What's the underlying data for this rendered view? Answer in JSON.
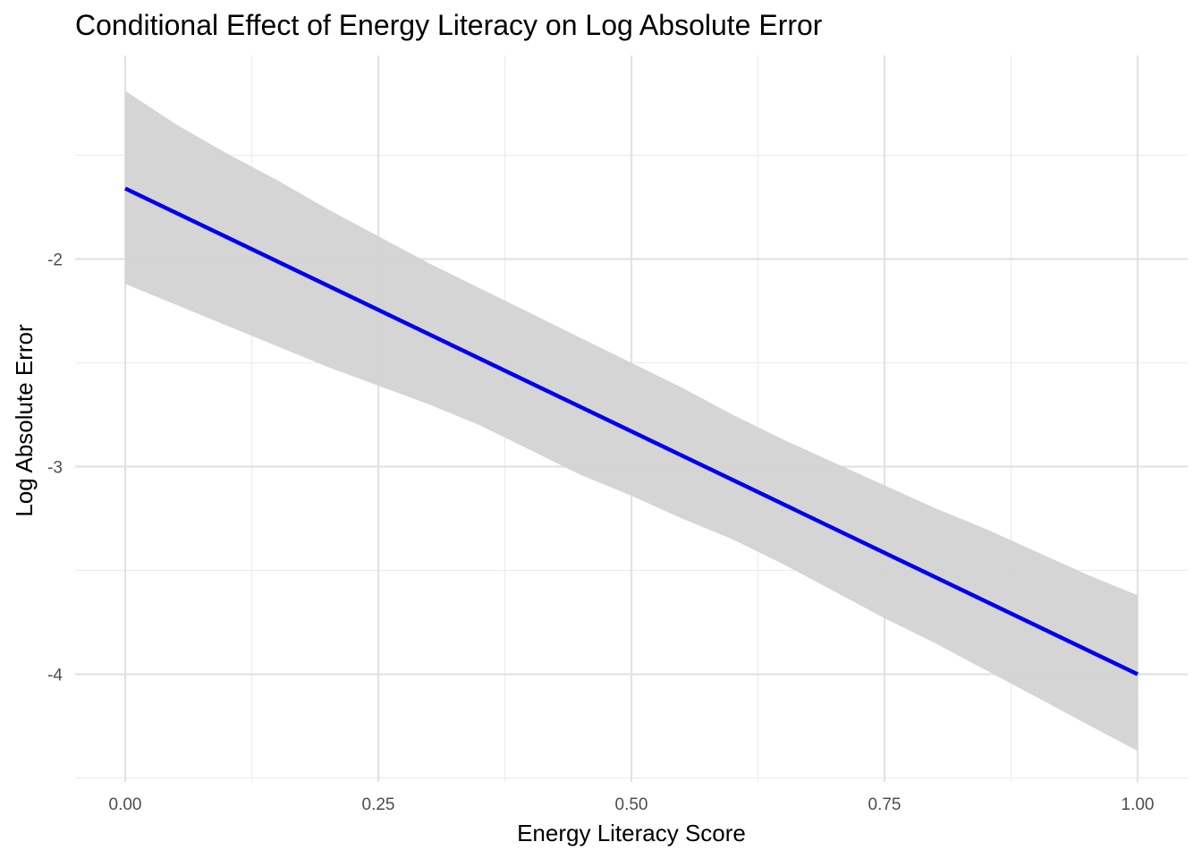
{
  "chart_data": {
    "type": "line",
    "title": "Conditional Effect of Energy Literacy on Log Absolute Error",
    "xlabel": "Energy Literacy Score",
    "ylabel": "Log Absolute Error",
    "xlim": [
      -0.1,
      1.0
    ],
    "ylim": [
      -4.5,
      -1.2
    ],
    "x_ticks": [
      0.0,
      0.25,
      0.5,
      0.75,
      1.0
    ],
    "x_tick_labels": [
      "0.00",
      "0.25",
      "0.50",
      "0.75",
      "1.00"
    ],
    "y_ticks": [
      -2,
      -3,
      -4
    ],
    "y_tick_labels": [
      "-2",
      "-3",
      "-4"
    ],
    "grid": true,
    "legend": "none",
    "series": [
      {
        "x": [
          0.0,
          1.0
        ],
        "y": [
          -1.66,
          -4.0
        ],
        "color": "#0000ee"
      }
    ],
    "confidence_band": {
      "color": "#d3d3d3",
      "x": [
        0.0,
        0.05,
        0.1,
        0.15,
        0.2,
        0.25,
        0.3,
        0.35,
        0.4,
        0.45,
        0.5,
        0.55,
        0.6,
        0.65,
        0.7,
        0.75,
        0.8,
        0.85,
        0.9,
        0.95,
        1.0
      ],
      "upper": [
        -1.19,
        -1.35,
        -1.49,
        -1.62,
        -1.76,
        -1.89,
        -2.02,
        -2.14,
        -2.26,
        -2.38,
        -2.5,
        -2.62,
        -2.75,
        -2.87,
        -2.98,
        -3.09,
        -3.2,
        -3.3,
        -3.41,
        -3.52,
        -3.62
      ],
      "lower": [
        -2.12,
        -2.22,
        -2.32,
        -2.42,
        -2.52,
        -2.61,
        -2.7,
        -2.8,
        -2.92,
        -3.04,
        -3.14,
        -3.25,
        -3.35,
        -3.47,
        -3.6,
        -3.73,
        -3.85,
        -3.98,
        -4.11,
        -4.24,
        -4.37
      ]
    }
  }
}
